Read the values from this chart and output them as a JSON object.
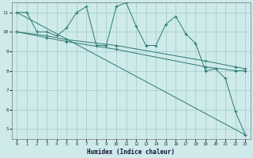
{
  "xlabel": "Humidex (Indice chaleur)",
  "bg_color": "#ceeaea",
  "grid_color": "#aacfcf",
  "line_color": "#2d7a6e",
  "xlim": [
    -0.5,
    23.5
  ],
  "ylim": [
    4.5,
    11.5
  ],
  "yticks": [
    5,
    6,
    7,
    8,
    9,
    10,
    11
  ],
  "xticks": [
    0,
    1,
    2,
    3,
    4,
    5,
    6,
    7,
    8,
    9,
    10,
    11,
    12,
    13,
    14,
    15,
    16,
    17,
    18,
    19,
    20,
    21,
    22,
    23
  ],
  "series1_x": [
    0,
    1,
    2,
    3,
    4,
    5,
    6,
    7,
    8,
    9,
    10,
    11,
    12,
    13,
    14,
    15,
    16,
    17,
    18,
    19,
    20,
    21,
    22,
    23
  ],
  "series1_y": [
    11.0,
    11.0,
    10.0,
    10.0,
    9.8,
    10.2,
    11.0,
    11.3,
    9.3,
    9.3,
    11.3,
    11.5,
    10.3,
    9.3,
    9.3,
    10.4,
    10.8,
    9.9,
    9.4,
    8.0,
    8.1,
    7.6,
    5.9,
    4.7
  ],
  "series2_x": [
    0,
    23
  ],
  "series2_y": [
    11.0,
    4.7
  ],
  "series3_x": [
    0,
    3,
    5,
    10,
    19,
    22,
    23
  ],
  "series3_y": [
    10.0,
    9.7,
    9.5,
    9.1,
    8.2,
    8.0,
    8.0
  ],
  "series4_x": [
    0,
    3,
    5,
    10,
    19,
    22,
    23
  ],
  "series4_y": [
    10.0,
    9.8,
    9.6,
    9.3,
    8.5,
    8.2,
    8.1
  ]
}
